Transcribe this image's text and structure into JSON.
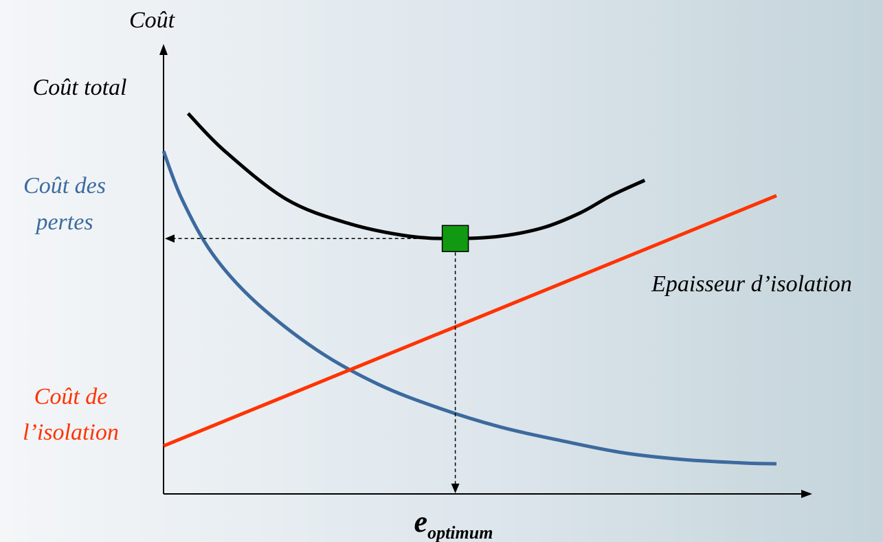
{
  "chart_data": {
    "type": "line",
    "ylabel": "Coût",
    "xlabel": "Epaisseur d’isolation",
    "optimum_label": {
      "main": "e",
      "sub": "optimum"
    },
    "x_range": [
      0,
      1
    ],
    "y_range": [
      0,
      1
    ],
    "series": [
      {
        "name": "Coût total",
        "color": "#000000",
        "label_lines": [
          "Coût total"
        ],
        "x": [
          0.04,
          0.1,
          0.2,
          0.3,
          0.4,
          0.476,
          0.55,
          0.62,
          0.68,
          0.73,
          0.785
        ],
        "y": [
          1.11,
          1.0,
          0.86,
          0.79,
          0.752,
          0.745,
          0.752,
          0.777,
          0.82,
          0.87,
          0.915
        ]
      },
      {
        "name": "Coût des pertes",
        "color": "#3c6a9e",
        "label_lines": [
          "Coût des",
          "pertes"
        ],
        "x": [
          0.0,
          0.03,
          0.08,
          0.15,
          0.25,
          0.35,
          0.45,
          0.55,
          0.65,
          0.75,
          0.85,
          0.95,
          1.0
        ],
        "y": [
          1.0,
          0.86,
          0.7,
          0.56,
          0.42,
          0.32,
          0.25,
          0.195,
          0.155,
          0.12,
          0.1,
          0.09,
          0.088
        ]
      },
      {
        "name": "Coût de l’isolation",
        "color": "#ff3300",
        "label_lines": [
          "Coût de",
          "l’isolation"
        ],
        "x": [
          0.0,
          1.0
        ],
        "y": [
          0.14,
          0.87
        ]
      }
    ],
    "optimum": {
      "x": 0.476,
      "y": 0.745,
      "marker_color": "#119911"
    }
  }
}
